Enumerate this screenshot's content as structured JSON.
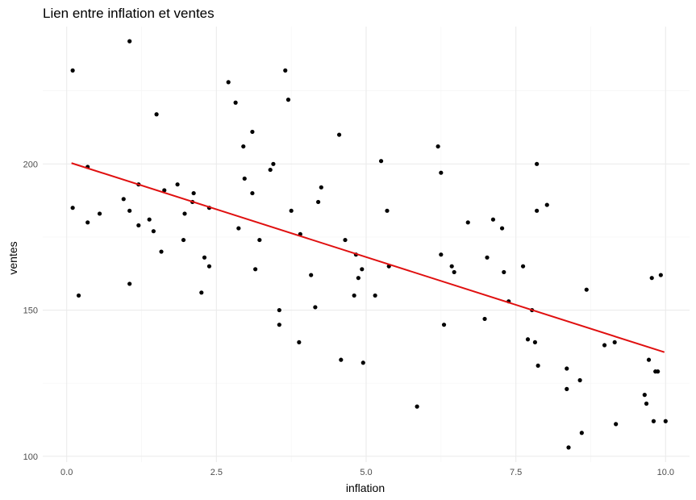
{
  "chart_data": {
    "type": "scatter",
    "title": "Lien entre inflation et ventes",
    "xlabel": "inflation",
    "ylabel": "ventes",
    "xlim": [
      -0.4,
      10.4
    ],
    "ylim": [
      98,
      247
    ],
    "x_ticks": [
      0.0,
      2.5,
      5.0,
      7.5,
      10.0
    ],
    "x_tick_labels": [
      "0.0",
      "2.5",
      "5.0",
      "7.5",
      "10.0"
    ],
    "y_ticks": [
      100,
      150,
      200
    ],
    "y_tick_labels": [
      "100",
      "150",
      "200"
    ],
    "grid": true,
    "legend": "none",
    "points": [
      [
        0.1,
        232
      ],
      [
        0.1,
        185
      ],
      [
        0.2,
        155
      ],
      [
        0.35,
        199
      ],
      [
        0.35,
        180
      ],
      [
        0.55,
        183
      ],
      [
        0.95,
        188
      ],
      [
        1.05,
        159
      ],
      [
        1.05,
        184
      ],
      [
        1.05,
        242
      ],
      [
        1.2,
        193
      ],
      [
        1.2,
        179
      ],
      [
        1.38,
        181
      ],
      [
        1.45,
        177
      ],
      [
        1.5,
        217
      ],
      [
        1.58,
        170
      ],
      [
        1.63,
        191
      ],
      [
        1.85,
        193
      ],
      [
        1.95,
        174
      ],
      [
        1.97,
        183
      ],
      [
        2.1,
        187
      ],
      [
        2.12,
        190
      ],
      [
        2.25,
        156
      ],
      [
        2.3,
        168
      ],
      [
        2.38,
        185
      ],
      [
        2.38,
        165
      ],
      [
        2.7,
        228
      ],
      [
        2.82,
        221
      ],
      [
        2.87,
        178
      ],
      [
        2.95,
        206
      ],
      [
        2.97,
        195
      ],
      [
        3.1,
        211
      ],
      [
        3.1,
        190
      ],
      [
        3.15,
        164
      ],
      [
        3.22,
        174
      ],
      [
        3.4,
        198
      ],
      [
        3.45,
        200
      ],
      [
        3.55,
        150
      ],
      [
        3.55,
        145
      ],
      [
        3.65,
        232
      ],
      [
        3.7,
        222
      ],
      [
        3.75,
        184
      ],
      [
        3.88,
        139
      ],
      [
        3.9,
        176
      ],
      [
        4.08,
        162
      ],
      [
        4.15,
        151
      ],
      [
        4.2,
        187
      ],
      [
        4.25,
        192
      ],
      [
        4.55,
        210
      ],
      [
        4.58,
        133
      ],
      [
        4.65,
        174
      ],
      [
        4.8,
        155
      ],
      [
        4.83,
        169
      ],
      [
        4.87,
        161
      ],
      [
        4.93,
        164
      ],
      [
        4.95,
        132
      ],
      [
        5.15,
        155
      ],
      [
        5.25,
        201
      ],
      [
        5.35,
        184
      ],
      [
        5.38,
        165
      ],
      [
        5.85,
        117
      ],
      [
        6.2,
        206
      ],
      [
        6.25,
        197
      ],
      [
        6.25,
        169
      ],
      [
        6.3,
        145
      ],
      [
        6.43,
        165
      ],
      [
        6.47,
        163
      ],
      [
        6.7,
        180
      ],
      [
        6.98,
        147
      ],
      [
        7.02,
        168
      ],
      [
        7.12,
        181
      ],
      [
        7.27,
        178
      ],
      [
        7.3,
        163
      ],
      [
        7.38,
        153
      ],
      [
        7.62,
        165
      ],
      [
        7.7,
        140
      ],
      [
        7.77,
        150
      ],
      [
        7.82,
        139
      ],
      [
        7.85,
        184
      ],
      [
        7.85,
        200
      ],
      [
        7.87,
        131
      ],
      [
        8.02,
        186
      ],
      [
        8.35,
        123
      ],
      [
        8.35,
        130
      ],
      [
        8.38,
        103
      ],
      [
        8.57,
        126
      ],
      [
        8.6,
        108
      ],
      [
        8.68,
        157
      ],
      [
        8.98,
        138
      ],
      [
        9.15,
        139
      ],
      [
        9.17,
        111
      ],
      [
        9.65,
        121
      ],
      [
        9.68,
        118
      ],
      [
        9.72,
        133
      ],
      [
        9.77,
        161
      ],
      [
        9.8,
        112
      ],
      [
        9.83,
        129
      ],
      [
        9.87,
        129
      ],
      [
        9.92,
        162
      ],
      [
        10.0,
        112
      ]
    ],
    "trend_line": {
      "x": [
        0.08,
        9.98
      ],
      "y": [
        200.3,
        135.6
      ],
      "color": "#e01010"
    }
  }
}
